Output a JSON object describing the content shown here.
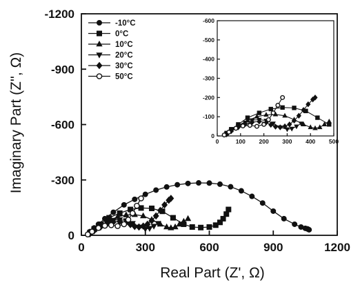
{
  "chart_data": [
    {
      "type": "scatter",
      "title": "",
      "xlabel": "Real Part  (Z', Ω)",
      "ylabel": "Imaginary Part  (Z'', Ω)",
      "xlim": [
        0,
        1200
      ],
      "ylim": [
        0,
        -1200
      ],
      "xticks": [
        0,
        300,
        600,
        900,
        1200
      ],
      "yticks": [
        0,
        -300,
        -600,
        -900,
        -1200
      ],
      "xtick_labels": [
        "0",
        "300",
        "600",
        "900",
        "1200"
      ],
      "ytick_labels": [
        "0",
        "-300",
        "-600",
        "-900",
        "-1200"
      ],
      "grid": false,
      "legend_position": "top-left",
      "series": [
        {
          "name": "-10°C",
          "marker": "circle-filled",
          "color": "#111111",
          "x": [
            40,
            60,
            80,
            110,
            150,
            200,
            250,
            300,
            350,
            400,
            450,
            500,
            550,
            600,
            650,
            700,
            750,
            800,
            850,
            900,
            950,
            1000,
            1030,
            1050,
            1060,
            1065,
            1068
          ],
          "y": [
            -20,
            -40,
            -60,
            -90,
            -125,
            -165,
            -195,
            -222,
            -245,
            -262,
            -274,
            -281,
            -284,
            -283,
            -277,
            -263,
            -241,
            -211,
            -175,
            -131,
            -90,
            -60,
            -45,
            -38,
            -35,
            -32,
            -30
          ]
        },
        {
          "name": "0°C",
          "marker": "square-filled",
          "color": "#111111",
          "x": [
            40,
            60,
            90,
            130,
            180,
            230,
            280,
            330,
            380,
            430,
            480,
            520,
            560,
            600,
            630,
            650,
            665,
            680,
            690
          ],
          "y": [
            -15,
            -35,
            -60,
            -95,
            -120,
            -140,
            -148,
            -146,
            -130,
            -95,
            -60,
            -45,
            -42,
            -45,
            -55,
            -70,
            -90,
            -115,
            -140
          ]
        },
        {
          "name": "10°C",
          "marker": "triangle-up-filled",
          "color": "#111111",
          "x": [
            40,
            60,
            90,
            130,
            170,
            210,
            250,
            290,
            330,
            370,
            400,
            420,
            440,
            460,
            480,
            500
          ],
          "y": [
            -12,
            -30,
            -55,
            -80,
            -100,
            -110,
            -112,
            -105,
            -85,
            -60,
            -45,
            -40,
            -45,
            -60,
            -75,
            -90
          ]
        },
        {
          "name": "20°C",
          "marker": "triangle-down-filled",
          "color": "#111111",
          "x": [
            40,
            60,
            90,
            120,
            150,
            180,
            210,
            240,
            270,
            300,
            320,
            340,
            360
          ],
          "y": [
            -10,
            -28,
            -52,
            -70,
            -82,
            -85,
            -80,
            -65,
            -45,
            -35,
            -38,
            -50,
            -65
          ]
        },
        {
          "name": "30°C",
          "marker": "diamond-filled",
          "color": "#111111",
          "x": [
            40,
            60,
            90,
            120,
            150,
            180,
            210,
            230,
            250,
            270,
            290,
            310,
            330,
            350,
            370,
            390,
            410,
            420
          ],
          "y": [
            -8,
            -25,
            -45,
            -62,
            -72,
            -75,
            -70,
            -58,
            -48,
            -45,
            -50,
            -60,
            -80,
            -105,
            -135,
            -165,
            -190,
            -200
          ]
        },
        {
          "name": "50°C",
          "marker": "circle-open",
          "color": "#111111",
          "x": [
            30,
            50,
            80,
            110,
            140,
            170,
            200,
            220,
            240,
            260,
            280
          ],
          "y": [
            -5,
            -20,
            -40,
            -52,
            -55,
            -50,
            -60,
            -85,
            -120,
            -160,
            -200
          ]
        }
      ]
    },
    {
      "type": "scatter",
      "title": "",
      "xlabel": "",
      "ylabel": "",
      "xlim": [
        0,
        500
      ],
      "ylim": [
        0,
        -600
      ],
      "xticks": [
        0,
        100,
        200,
        300,
        400,
        500
      ],
      "yticks": [
        0,
        -100,
        -200,
        -300,
        -400,
        -500,
        -600
      ],
      "xtick_labels": [
        "0",
        "100",
        "200",
        "300",
        "400",
        "500"
      ],
      "ytick_labels": [
        "0",
        "-100",
        "-200",
        "-300",
        "-400",
        "-500",
        "-600"
      ],
      "grid": false,
      "placement": "top-right inset",
      "series": [
        {
          "marker": "square-filled",
          "x": [
            40,
            60,
            90,
            130,
            180,
            230,
            280,
            330,
            380,
            430,
            480
          ],
          "y": [
            -15,
            -35,
            -60,
            -95,
            -120,
            -140,
            -148,
            -146,
            -130,
            -95,
            -60
          ]
        },
        {
          "marker": "triangle-up-filled",
          "x": [
            40,
            60,
            90,
            130,
            170,
            210,
            250,
            290,
            330,
            370,
            400,
            420,
            440,
            460,
            480
          ],
          "y": [
            -12,
            -30,
            -55,
            -80,
            -100,
            -110,
            -112,
            -105,
            -85,
            -60,
            -45,
            -40,
            -45,
            -60,
            -75
          ]
        },
        {
          "marker": "triangle-down-filled",
          "x": [
            40,
            60,
            90,
            120,
            150,
            180,
            210,
            240,
            270,
            300,
            320,
            340,
            360
          ],
          "y": [
            -10,
            -28,
            -52,
            -70,
            -82,
            -85,
            -80,
            -65,
            -45,
            -35,
            -38,
            -50,
            -65
          ]
        },
        {
          "marker": "diamond-filled",
          "x": [
            40,
            60,
            90,
            120,
            150,
            180,
            210,
            230,
            250,
            270,
            290,
            310,
            330,
            350,
            370,
            390,
            410,
            420
          ],
          "y": [
            -8,
            -25,
            -45,
            -62,
            -72,
            -75,
            -70,
            -58,
            -48,
            -45,
            -50,
            -60,
            -80,
            -105,
            -135,
            -165,
            -190,
            -200
          ]
        },
        {
          "marker": "circle-open",
          "x": [
            30,
            50,
            80,
            110,
            140,
            170,
            200,
            220,
            240,
            260,
            280
          ],
          "y": [
            -5,
            -20,
            -40,
            -52,
            -55,
            -50,
            -60,
            -85,
            -120,
            -160,
            -200
          ]
        }
      ]
    }
  ]
}
